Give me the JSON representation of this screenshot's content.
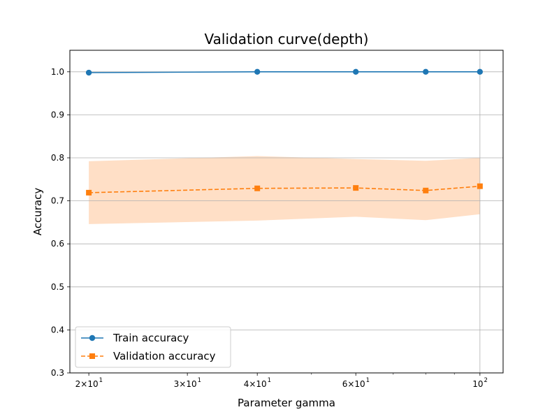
{
  "chart_data": {
    "type": "line",
    "title": "Validation curve(depth)",
    "xlabel": "Parameter gamma",
    "ylabel": "Accuracy",
    "xscale": "log",
    "xlim": [
      18.5,
      110
    ],
    "ylim": [
      0.3,
      1.05
    ],
    "grid": true,
    "legend_position": "lower-left",
    "x": [
      20,
      40,
      60,
      80,
      100
    ],
    "x_ticks": [
      {
        "value": 20,
        "base": "2×10",
        "exp": "1"
      },
      {
        "value": 30,
        "base": "3×10",
        "exp": "1"
      },
      {
        "value": 40,
        "base": "4×10",
        "exp": "1"
      },
      {
        "value": 60,
        "base": "6×10",
        "exp": "1"
      },
      {
        "value": 100,
        "base": "10",
        "exp": "2"
      }
    ],
    "y_ticks": [
      {
        "value": 0.3,
        "label": "0.3"
      },
      {
        "value": 0.4,
        "label": "0.4"
      },
      {
        "value": 0.5,
        "label": "0.5"
      },
      {
        "value": 0.6,
        "label": "0.6"
      },
      {
        "value": 0.7,
        "label": "0.7"
      },
      {
        "value": 0.8,
        "label": "0.8"
      },
      {
        "value": 0.9,
        "label": "0.9"
      },
      {
        "value": 1.0,
        "label": "1.0"
      }
    ],
    "series": [
      {
        "name": "Train accuracy",
        "color": "#1f77b4",
        "marker": "circle",
        "linestyle": "solid",
        "values": [
          0.998,
          1.0,
          1.0,
          1.0,
          1.0
        ]
      },
      {
        "name": "Validation accuracy",
        "color": "#ff7f0e",
        "marker": "square",
        "linestyle": "dashed",
        "values": [
          0.719,
          0.729,
          0.73,
          0.724,
          0.734
        ],
        "band_upper": [
          0.792,
          0.804,
          0.797,
          0.793,
          0.8
        ],
        "band_lower": [
          0.646,
          0.654,
          0.663,
          0.655,
          0.669
        ],
        "band_color": "#ffdfc6"
      }
    ]
  }
}
